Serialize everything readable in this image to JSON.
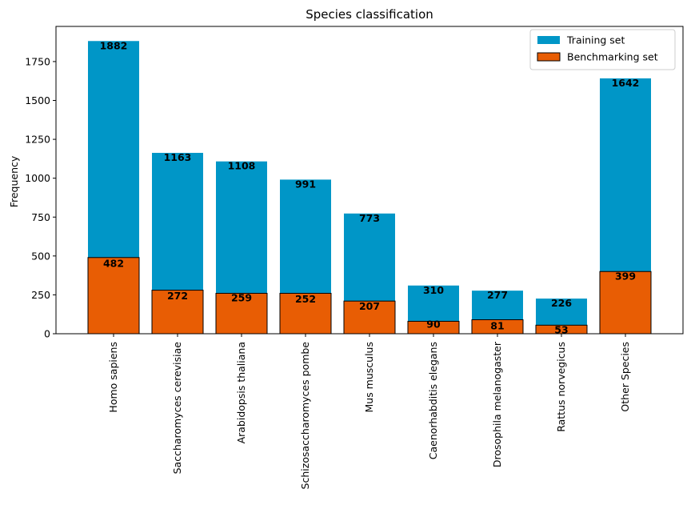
{
  "chart_data": {
    "type": "bar",
    "title": "Species classification",
    "xlabel": "",
    "ylabel": "Frequency",
    "ylim": [
      0,
      1976
    ],
    "yticks": [
      0,
      250,
      500,
      750,
      1000,
      1250,
      1500,
      1750
    ],
    "grid": false,
    "legend_position": "top-right",
    "categories": [
      "Homo sapiens",
      "Saccharomyces cerevisiae",
      "Arabidopsis thaliana",
      "Schizosaccharomyces pombe",
      "Mus musculus",
      "Caenorhabditis elegans",
      "Drosophila melanogaster",
      "Rattus norvegicus",
      "Other Species"
    ],
    "series": [
      {
        "name": "Training set",
        "color": "#0096c7",
        "edgecolor": "none",
        "values": [
          1882,
          1163,
          1108,
          991,
          773,
          310,
          277,
          226,
          1642
        ]
      },
      {
        "name": "Benchmarking set",
        "color": "#e85d04",
        "edgecolor": "#000000",
        "values": [
          482,
          272,
          259,
          252,
          207,
          90,
          81,
          53,
          399
        ],
        "bar_heights": [
          490,
          280,
          260,
          260,
          210,
          80,
          90,
          55,
          400
        ]
      }
    ]
  }
}
